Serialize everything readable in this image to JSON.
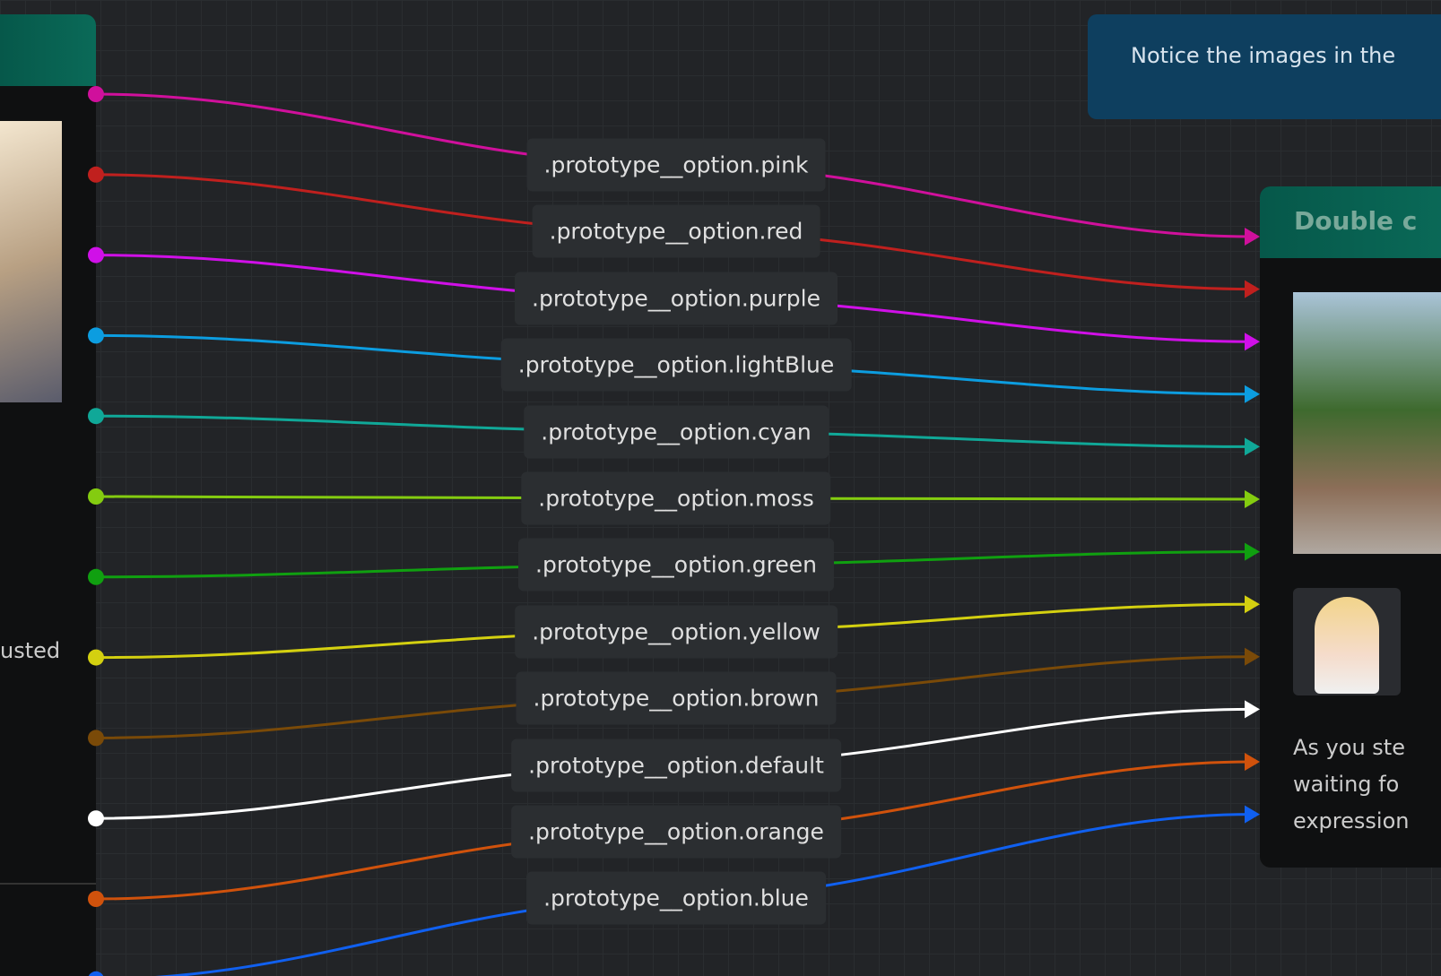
{
  "note": "Notice the images in the",
  "left_node": {
    "text": "usted"
  },
  "right_node": {
    "title": "Double c",
    "text_lines": [
      "As you ste",
      "waiting fo",
      "expression"
    ]
  },
  "edges": [
    {
      "label": ".prototype__option.pink",
      "color": "#d0109c"
    },
    {
      "label": ".prototype__option.red",
      "color": "#c0201e"
    },
    {
      "label": ".prototype__option.purple",
      "color": "#d010e8"
    },
    {
      "label": ".prototype__option.lightBlue",
      "color": "#0c9de0"
    },
    {
      "label": ".prototype__option.cyan",
      "color": "#10a898"
    },
    {
      "label": ".prototype__option.moss",
      "color": "#84cc10"
    },
    {
      "label": ".prototype__option.green",
      "color": "#10a010"
    },
    {
      "label": ".prototype__option.yellow",
      "color": "#d4d010"
    },
    {
      "label": ".prototype__option.brown",
      "color": "#7a4a08"
    },
    {
      "label": ".prototype__option.default",
      "color": "#ffffff"
    },
    {
      "label": ".prototype__option.orange",
      "color": "#d0520c"
    },
    {
      "label": ".prototype__option.blue",
      "color": "#1060f0"
    }
  ]
}
